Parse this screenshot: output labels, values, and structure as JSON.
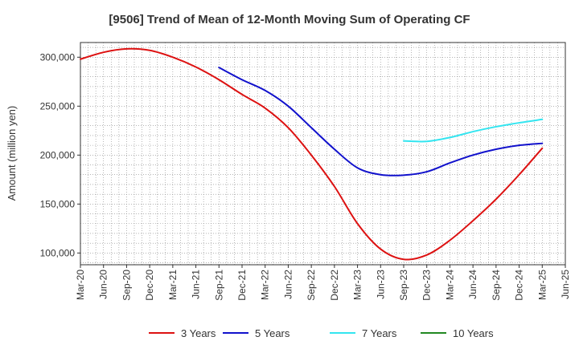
{
  "chart_data": {
    "type": "line",
    "title": "[9506]  Trend of Mean of 12-Month Moving Sum of Operating CF",
    "xlabel": "",
    "ylabel": "Amount (million yen)",
    "ylim": [
      88000,
      315000
    ],
    "yticks": [
      100000,
      150000,
      200000,
      250000,
      300000
    ],
    "ytick_labels": [
      "100,000",
      "150,000",
      "200,000",
      "250,000",
      "300,000"
    ],
    "categories": [
      "Mar-20",
      "Jun-20",
      "Sep-20",
      "Dec-20",
      "Mar-21",
      "Jun-21",
      "Sep-21",
      "Dec-21",
      "Mar-22",
      "Jun-22",
      "Sep-22",
      "Dec-22",
      "Mar-23",
      "Jun-23",
      "Sep-23",
      "Dec-23",
      "Mar-24",
      "Jun-24",
      "Sep-24",
      "Dec-24",
      "Mar-25",
      "Jun-25"
    ],
    "grid": true,
    "legend_position": "bottom",
    "series": [
      {
        "name": "3 Years",
        "color": "#dd1111",
        "values": [
          298000,
          305000,
          308500,
          307000,
          300000,
          290000,
          277000,
          262000,
          248000,
          228000,
          200000,
          168000,
          130000,
          104000,
          93500,
          98000,
          113000,
          133000,
          155000,
          180000,
          207000,
          null
        ]
      },
      {
        "name": "5 Years",
        "color": "#1111cc",
        "values": [
          null,
          null,
          null,
          null,
          null,
          null,
          289500,
          277000,
          266000,
          250000,
          228000,
          206000,
          187000,
          180000,
          179500,
          183000,
          192000,
          200000,
          206000,
          210000,
          212000,
          null
        ]
      },
      {
        "name": "7 Years",
        "color": "#33e5f0",
        "values": [
          null,
          null,
          null,
          null,
          null,
          null,
          null,
          null,
          null,
          null,
          null,
          null,
          null,
          null,
          214500,
          214000,
          218000,
          224000,
          229000,
          233000,
          236500,
          null
        ]
      },
      {
        "name": "10 Years",
        "color": "#228822",
        "values": [
          null,
          null,
          null,
          null,
          null,
          null,
          null,
          null,
          null,
          null,
          null,
          null,
          null,
          null,
          null,
          null,
          null,
          null,
          null,
          null,
          null,
          null
        ]
      }
    ]
  }
}
